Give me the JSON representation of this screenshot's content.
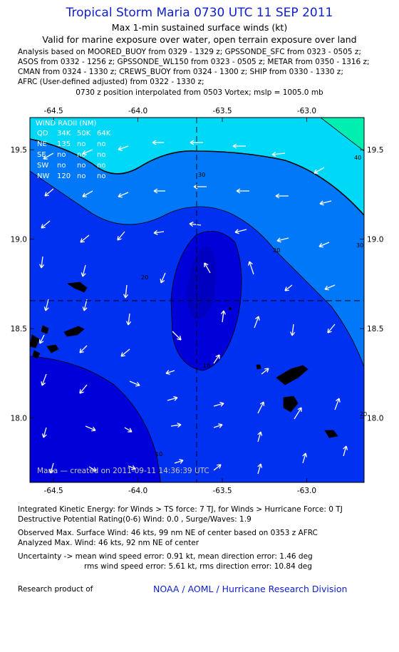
{
  "header": {
    "title": "Tropical Storm Maria 0730 UTC 11 SEP 2011",
    "subtitle": "Max 1-min sustained surface winds (kt)",
    "validity": "Valid for marine exposure over water, open terrain exposure over land"
  },
  "analysis_lines": [
    "Analysis based on MOORED_BUOY from 0329 - 1329 z; GPSSONDE_SFC from 0323 - 0505 z;",
    "ASOS from 0332 - 1256 z; GPSSONDE_WL150 from 0323 - 0505 z; METAR from 0350 - 1316 z;",
    "CMAN from 0324 - 1330 z; CREWS_BUOY from 0324 - 1300 z; SHIP from 0330 - 1330 z;",
    "AFRC (User-defined adjusted) from 0322 - 1330 z;"
  ],
  "position_note": "0730 z position interpolated from 0503 Vortex; mslp = 1005.0 mb",
  "chart_data": {
    "type": "contour",
    "x_ticks": [
      "-64.5",
      "-64.0",
      "-63.5",
      "-63.0"
    ],
    "y_ticks": [
      "19.5",
      "19.0",
      "18.5",
      "18.0"
    ],
    "xlim": [
      -64.64,
      -62.66
    ],
    "ylim": [
      17.64,
      19.68
    ],
    "contour_labels": [
      "10",
      "10",
      "20",
      "20",
      "20",
      "30",
      "30",
      "40"
    ],
    "storm_center": {
      "lon": -63.62,
      "lat": 18.64
    },
    "colors": {
      "band_0_10": "#0000d8",
      "band_10_20": "#0030f0",
      "band_20_30": "#0078f8",
      "band_30_40": "#00d8f8",
      "band_40_50": "#00eeb0",
      "band_lt10_core": "#0000c0",
      "arrow": "#ffffff"
    },
    "wind_radii": {
      "title": "WIND RADII (NM)",
      "header": [
        "QD",
        "34K",
        "50K",
        "64K"
      ],
      "rows": [
        [
          "NE",
          "135",
          "no",
          "no"
        ],
        [
          "SE",
          "no",
          "no",
          "no"
        ],
        [
          "SW",
          "no",
          "no",
          "no"
        ],
        [
          "NW",
          "120",
          "no",
          "no"
        ]
      ]
    },
    "created_label": "Maria — created on 2011-09-11 14:36:39 UTC"
  },
  "footer": {
    "ike": "Integrated Kinetic Energy:  for Winds > TS force: 7 TJ,  for Winds > Hurricane Force: 0 TJ",
    "dpr": "Destructive Potential Rating(0-6)   Wind: 0.0 , Surge/Waves: 1.9",
    "observed_max": "Observed Max. Surface Wind: 46 kts, 99 nm NE of center based on 0353 z AFRC",
    "analyzed_max": "Analyzed Max. Wind: 46 kts, 92 nm NE of center",
    "uncertainty1": "Uncertainty -> mean wind speed error: 0.91 kt,   mean direction error: 1.46 deg",
    "uncertainty2": "rms wind speed error: 5.61 kt,   rms direction error: 10.84 deg",
    "research": "Research product of",
    "noaa": "NOAA / AOML / Hurricane Research Division"
  }
}
